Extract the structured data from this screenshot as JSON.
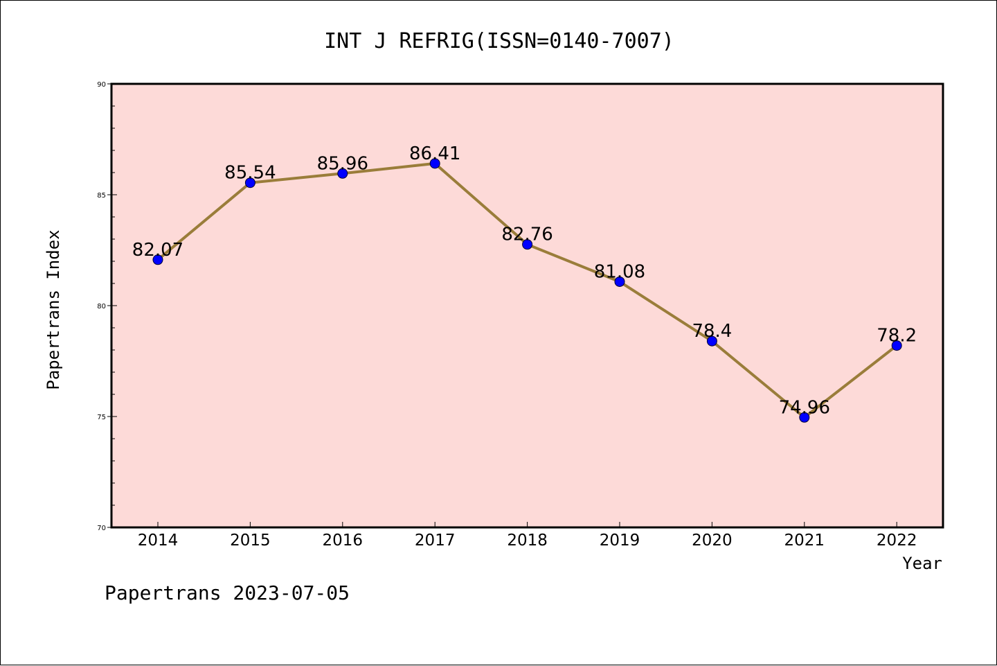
{
  "chart_data": {
    "type": "line",
    "title": "INT J REFRIG(ISSN=0140-7007)",
    "xlabel": "Year",
    "ylabel": "Papertrans Index",
    "categories": [
      "2014",
      "2015",
      "2016",
      "2017",
      "2018",
      "2019",
      "2020",
      "2021",
      "2022"
    ],
    "series": [
      {
        "values": [
          82.07,
          85.54,
          85.96,
          86.41,
          82.76,
          81.08,
          78.4,
          74.96,
          78.2
        ],
        "labels": [
          "82.07",
          "85.54",
          "85.96",
          "86.41",
          "82.76",
          "81.08",
          "78.4",
          "74.96",
          "78.2"
        ],
        "line_color": "#9a7d3a",
        "marker_color": "#0000ff"
      }
    ],
    "ylim": [
      70,
      90
    ],
    "yticks": [
      "70",
      "75",
      "80",
      "85",
      "90"
    ],
    "plot_background": "#fddad8",
    "grid": false,
    "legend": "none"
  },
  "footer": {
    "text": "Papertrans 2023-07-05"
  }
}
